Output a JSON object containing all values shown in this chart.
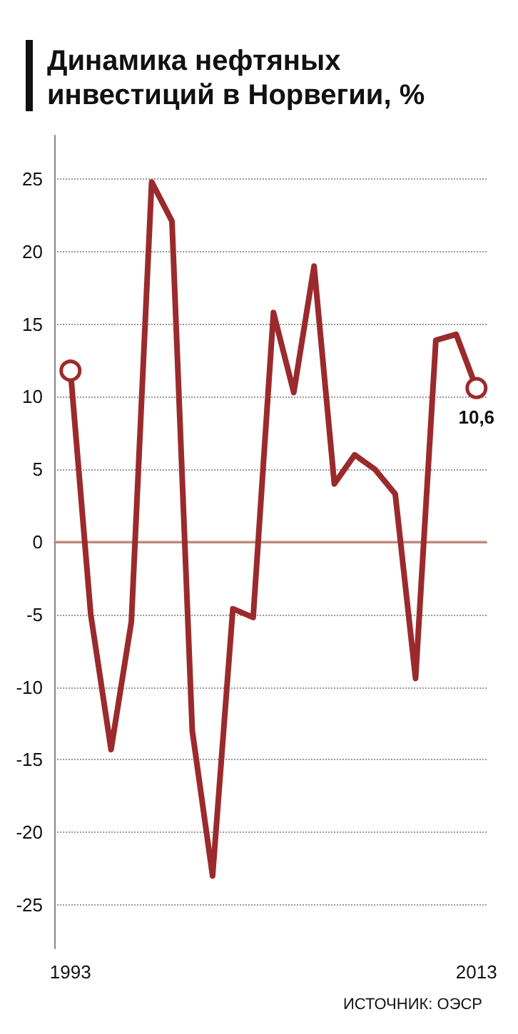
{
  "chart_data": {
    "type": "line",
    "title": "Динамика нефтяных\nинвестиций в Норвегии, %",
    "x": [
      1993,
      1994,
      1995,
      1996,
      1997,
      1998,
      1999,
      2000,
      2001,
      2002,
      2003,
      2004,
      2005,
      2006,
      2007,
      2008,
      2009,
      2010,
      2011,
      2012,
      2013
    ],
    "series": [
      {
        "color": "#9b2a2c",
        "values": [
          11.8,
          -5,
          -14.3,
          -5.5,
          24.8,
          22.1,
          -13,
          -23,
          -4.6,
          -5.2,
          15.8,
          10.3,
          19,
          4,
          6,
          5,
          3.3,
          -9.4,
          13.9,
          14.3,
          10.6
        ]
      }
    ],
    "xlim": [
      1992.2,
      2013.5
    ],
    "xticks": [
      1993,
      2013
    ],
    "ylim": [
      -28,
      28
    ],
    "yticks": [
      -25,
      -20,
      -15,
      -10,
      -5,
      0,
      5,
      10,
      15,
      20,
      25
    ],
    "ref_lines": [
      {
        "axis": "y",
        "value": 0,
        "color": "#c98a80"
      }
    ],
    "annotations": [
      {
        "text": "10,6",
        "x": 2013,
        "y": 10.6
      },
      "ИСТОЧНИК: ОЭСР"
    ],
    "grid": "y",
    "line_style": "solid"
  }
}
